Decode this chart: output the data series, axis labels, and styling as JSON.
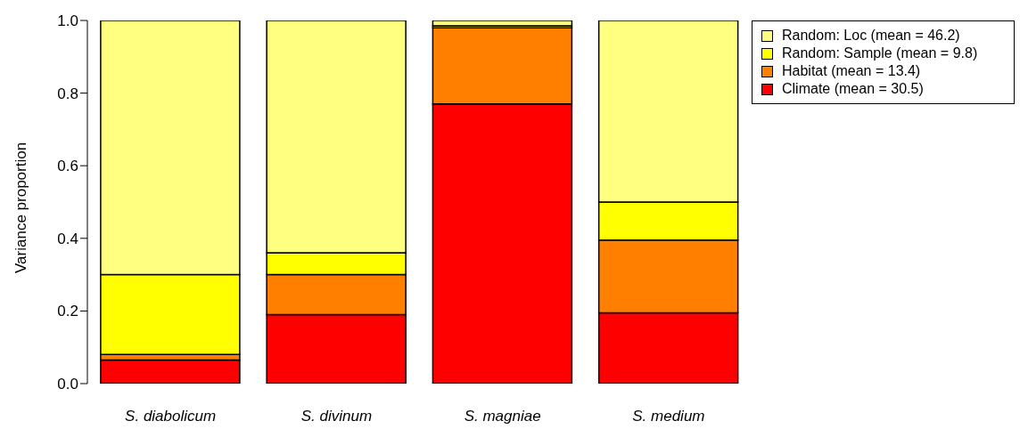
{
  "chart_data": {
    "type": "bar",
    "stacked": true,
    "ylabel": "Variance proportion",
    "categories": [
      "S. diabolicum",
      "S. divinum",
      "S. magniae",
      "S. medium"
    ],
    "series": [
      {
        "name": "Climate (mean = 30.5)",
        "color": "#ff0000",
        "values": [
          0.065,
          0.19,
          0.77,
          0.195
        ]
      },
      {
        "name": "Habitat (mean = 13.4)",
        "color": "#ff8000",
        "values": [
          0.015,
          0.11,
          0.21,
          0.2
        ]
      },
      {
        "name": "Random: Sample (mean = 9.8)",
        "color": "#ffff00",
        "values": [
          0.22,
          0.06,
          0.005,
          0.105
        ]
      },
      {
        "name": "Random: Loc (mean = 46.2)",
        "color": "#ffff80",
        "values": [
          0.7,
          0.64,
          0.015,
          0.5
        ]
      }
    ],
    "ylim": [
      0,
      1
    ],
    "yticks": [
      {
        "value": 0,
        "label": "0.0"
      },
      {
        "value": 0.2,
        "label": "0.2"
      },
      {
        "value": 0.4,
        "label": "0.4"
      },
      {
        "value": 0.6,
        "label": "0.6"
      },
      {
        "value": 0.8,
        "label": "0.8"
      },
      {
        "value": 1,
        "label": "1.0"
      }
    ],
    "grid": false,
    "legend": "top right"
  }
}
